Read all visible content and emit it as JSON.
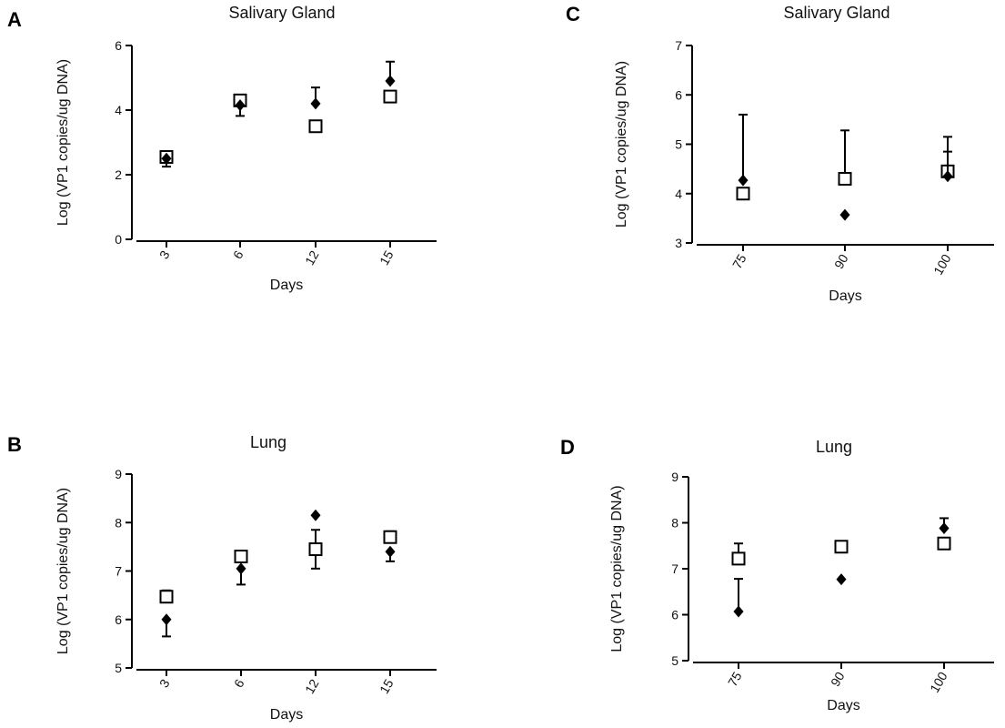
{
  "chart_data": [
    {
      "panel": "A",
      "type": "scatter",
      "title": "Salivary Gland",
      "xlabel": "Days",
      "ylabel": "Log (VP1 copies/ug DNA)",
      "categories": [
        "3",
        "6",
        "12",
        "15"
      ],
      "ylim": [
        0,
        6
      ],
      "yticks": [
        0,
        2,
        4,
        6
      ],
      "series": [
        {
          "marker": "open-square",
          "values": [
            2.55,
            4.3,
            3.5,
            4.42
          ],
          "err_high": [
            2.72,
            4.45,
            3.5,
            4.42
          ],
          "err_low": [
            2.55,
            4.3,
            3.5,
            4.42
          ]
        },
        {
          "marker": "filled-diamond",
          "values": [
            2.5,
            4.15,
            4.2,
            4.9
          ],
          "err_high": [
            2.5,
            4.15,
            4.7,
            5.5
          ],
          "err_low": [
            2.25,
            3.82,
            4.2,
            4.9
          ]
        }
      ]
    },
    {
      "panel": "B",
      "type": "scatter",
      "title": "Lung",
      "xlabel": "Days",
      "ylabel": "Log (VP1 copies/ug DNA)",
      "categories": [
        "3",
        "6",
        "12",
        "15"
      ],
      "ylim": [
        5,
        9
      ],
      "yticks": [
        5,
        6,
        7,
        8,
        9
      ],
      "series": [
        {
          "marker": "open-square",
          "values": [
            6.47,
            7.3,
            7.45,
            7.7
          ],
          "err_high": [
            6.6,
            7.42,
            7.85,
            7.82
          ],
          "err_low": [
            6.47,
            7.3,
            7.05,
            7.7
          ]
        },
        {
          "marker": "filled-diamond",
          "values": [
            6.0,
            7.05,
            8.15,
            7.4
          ],
          "err_high": [
            6.0,
            7.05,
            8.15,
            7.4
          ],
          "err_low": [
            5.65,
            6.72,
            8.15,
            7.2
          ]
        }
      ]
    },
    {
      "panel": "C",
      "type": "scatter",
      "title": "Salivary Gland",
      "xlabel": "Days",
      "ylabel": "Log (VP1 copies/ug DNA)",
      "categories": [
        "75",
        "90",
        "100"
      ],
      "ylim": [
        3,
        7
      ],
      "yticks": [
        3,
        4,
        5,
        6,
        7
      ],
      "series": [
        {
          "marker": "open-square",
          "values": [
            4.0,
            4.3,
            4.45
          ],
          "err_high": [
            4.0,
            5.28,
            5.15
          ],
          "err_low": [
            4.0,
            4.3,
            4.45
          ]
        },
        {
          "marker": "filled-diamond",
          "values": [
            4.27,
            3.57,
            4.35
          ],
          "err_high": [
            5.6,
            3.57,
            4.85
          ],
          "err_low": [
            4.27,
            3.57,
            4.35
          ]
        }
      ]
    },
    {
      "panel": "D",
      "type": "scatter",
      "title": "Lung",
      "xlabel": "Days",
      "ylabel": "Log (VP1 copies/ug DNA)",
      "categories": [
        "75",
        "90",
        "100"
      ],
      "ylim": [
        5,
        9
      ],
      "yticks": [
        5,
        6,
        7,
        8,
        9
      ],
      "series": [
        {
          "marker": "open-square",
          "values": [
            7.22,
            7.48,
            7.55
          ],
          "err_high": [
            7.55,
            7.48,
            7.55
          ],
          "err_low": [
            7.22,
            7.48,
            7.55
          ]
        },
        {
          "marker": "filled-diamond",
          "values": [
            6.07,
            6.77,
            7.88
          ],
          "err_high": [
            6.78,
            6.77,
            8.1
          ],
          "err_low": [
            6.07,
            6.77,
            7.88
          ]
        }
      ]
    }
  ]
}
